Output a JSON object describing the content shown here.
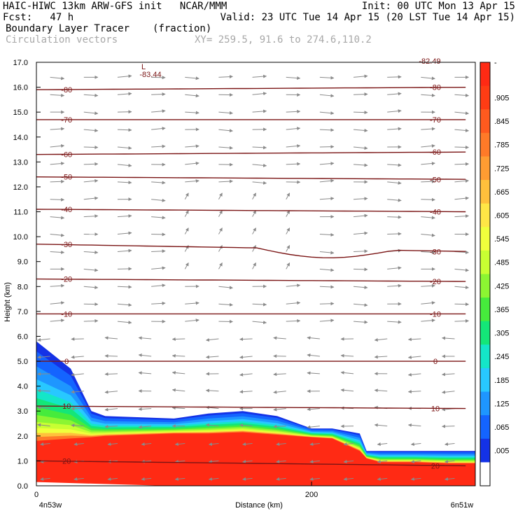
{
  "header": {
    "line1_left": "HAIC-HIWC 13km ARW-GFS init   NCAR/MMM",
    "line1_right": "Init: 00 UTC Mon 13 Apr 15",
    "line2_left": "Fcst:   47 h",
    "line2_right": "Valid: 23 UTC Tue 14 Apr 15 (20 LST Tue 14 Apr 15)",
    "line3_field": "Boundary Layer Tracer",
    "line3_units": "(fraction)",
    "line4_vectors": "Circulation vectors",
    "line4_xy": "XY= 259.5, 91.6 to 274.6,110.2"
  },
  "chart_data": {
    "type": "heatmap",
    "xlabel": "Distance (km)",
    "ylabel": "Height (km)",
    "xlim": [
      0,
      319
    ],
    "ylim": [
      0,
      17
    ],
    "x_ticks": [
      {
        "value": 0,
        "label": "0"
      },
      {
        "value": 200,
        "label": "200"
      }
    ],
    "x_endpoint_labels": {
      "left": "4n53w",
      "right": "6n51w"
    },
    "y_ticks": [
      "0.0",
      "1.0",
      "2.0",
      "3.0",
      "4.0",
      "5.0",
      "6.0",
      "7.0",
      "8.0",
      "9.0",
      "10.0",
      "11.0",
      "12.0",
      "13.0",
      "14.0",
      "15.0",
      "16.0",
      "17.0"
    ],
    "colorbar": {
      "labels": [
        "-",
        ".905",
        ".845",
        ".785",
        ".725",
        ".665",
        ".605",
        ".545",
        ".485",
        ".425",
        ".365",
        ".305",
        ".245",
        ".185",
        ".125",
        ".065",
        ".005"
      ],
      "colors": [
        "#ff2a14",
        "#ff3c14",
        "#ff5a1e",
        "#ff7a28",
        "#ff9c32",
        "#ffc03c",
        "#ffe646",
        "#f0ff3c",
        "#c8ff32",
        "#8cf532",
        "#46eb3c",
        "#14e678",
        "#14e6c8",
        "#28c8ff",
        "#1e96ff",
        "#1464ff",
        "#1432e6",
        "#ffffff"
      ]
    },
    "boundary_layer_top_km": {
      "x": [
        0,
        25,
        40,
        50,
        75,
        100,
        125,
        150,
        175,
        200,
        215,
        235,
        240,
        250,
        275,
        300,
        319
      ],
      "red_top": [
        1.8,
        1.9,
        1.95,
        2.0,
        2.05,
        2.1,
        2.1,
        2.15,
        2.05,
        1.95,
        1.9,
        1.4,
        1.1,
        0.95,
        0.95,
        0.9,
        0.9
      ],
      "tracer_top": [
        5.8,
        4.7,
        3.0,
        2.8,
        2.75,
        2.7,
        2.9,
        3.0,
        2.8,
        2.3,
        2.3,
        2.1,
        1.4,
        1.4,
        1.4,
        1.4,
        1.4
      ]
    },
    "isotherms": [
      {
        "label": "20",
        "h": [
          1.0,
          0.8
        ]
      },
      {
        "label": "10",
        "h": [
          3.2,
          3.1
        ]
      },
      {
        "label": "0",
        "h": [
          5.0,
          5.0
        ]
      },
      {
        "label": "-10",
        "h": [
          6.9,
          6.9
        ]
      },
      {
        "label": "-20",
        "h": [
          8.3,
          8.2
        ]
      },
      {
        "label": "-30",
        "h": [
          9.7,
          9.4
        ]
      },
      {
        "label": "-40",
        "h": [
          11.1,
          11.0
        ]
      },
      {
        "label": "-50",
        "h": [
          12.4,
          12.3
        ]
      },
      {
        "label": "-60",
        "h": [
          13.3,
          13.4
        ]
      },
      {
        "label": "-70",
        "h": [
          14.7,
          14.7
        ]
      },
      {
        "label": "-80",
        "h": [
          15.9,
          16.0
        ]
      }
    ],
    "min_label": {
      "marker": "L",
      "value": "-83.44"
    },
    "corner_label": "-82.49"
  }
}
